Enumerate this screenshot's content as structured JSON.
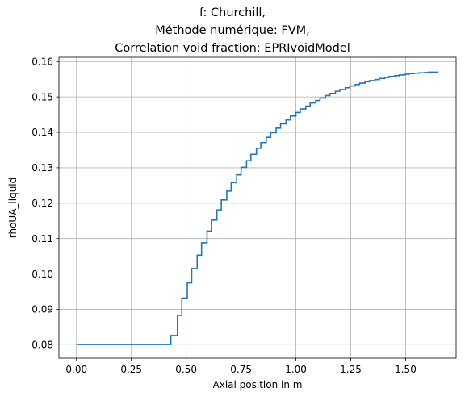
{
  "chart_data": {
    "type": "line",
    "title_lines": [
      "f: Churchill,",
      "Méthode numérique: FVM,",
      "Correlation void fraction: EPRIvoidModel"
    ],
    "xlabel": "Axial position in m",
    "ylabel": "rhoUA_liquid",
    "xlim": [
      -0.08,
      1.73
    ],
    "ylim": [
      0.0762,
      0.1612
    ],
    "xticks": [
      0.0,
      0.25,
      0.5,
      0.75,
      1.0,
      1.25,
      1.5
    ],
    "xtick_labels": [
      "0.00",
      "0.25",
      "0.50",
      "0.75",
      "1.00",
      "1.25",
      "1.50"
    ],
    "yticks": [
      0.08,
      0.09,
      0.1,
      0.11,
      0.12,
      0.13,
      0.14,
      0.15,
      0.16
    ],
    "ytick_labels": [
      "0.08",
      "0.09",
      "0.10",
      "0.11",
      "0.12",
      "0.13",
      "0.14",
      "0.15",
      "0.16"
    ],
    "grid": true,
    "line_color": "#1f77b4",
    "series": [
      {
        "step": true,
        "x": [
          0.0,
          0.43,
          0.46,
          0.48,
          0.505,
          0.525,
          0.55,
          0.57,
          0.595,
          0.615,
          0.64,
          0.66,
          0.685,
          0.705,
          0.73,
          0.75,
          0.775,
          0.795,
          0.82,
          0.84,
          0.865,
          0.885,
          0.91,
          0.93,
          0.955,
          0.975,
          1.0,
          1.02,
          1.045,
          1.065,
          1.09,
          1.11,
          1.135,
          1.155,
          1.18,
          1.2,
          1.225,
          1.245,
          1.27,
          1.29,
          1.315,
          1.335,
          1.36,
          1.38,
          1.405,
          1.425,
          1.45,
          1.47,
          1.495,
          1.515,
          1.54,
          1.56,
          1.585,
          1.605,
          1.65
        ],
        "y": [
          0.0801,
          0.0826,
          0.0883,
          0.0932,
          0.0975,
          0.1015,
          0.1053,
          0.1088,
          0.1121,
          0.1152,
          0.1181,
          0.1209,
          0.1234,
          0.1258,
          0.128,
          0.1301,
          0.132,
          0.1338,
          0.1355,
          0.1371,
          0.1386,
          0.1399,
          0.1412,
          0.1424,
          0.1435,
          0.1446,
          0.1456,
          0.1466,
          0.1474,
          0.1483,
          0.149,
          0.1497,
          0.1504,
          0.151,
          0.1516,
          0.1521,
          0.1526,
          0.1531,
          0.1535,
          0.1539,
          0.1543,
          0.1546,
          0.1549,
          0.1552,
          0.1555,
          0.1558,
          0.156,
          0.1562,
          0.1564,
          0.1566,
          0.1567,
          0.1568,
          0.1569,
          0.157,
          0.157
        ]
      }
    ]
  }
}
